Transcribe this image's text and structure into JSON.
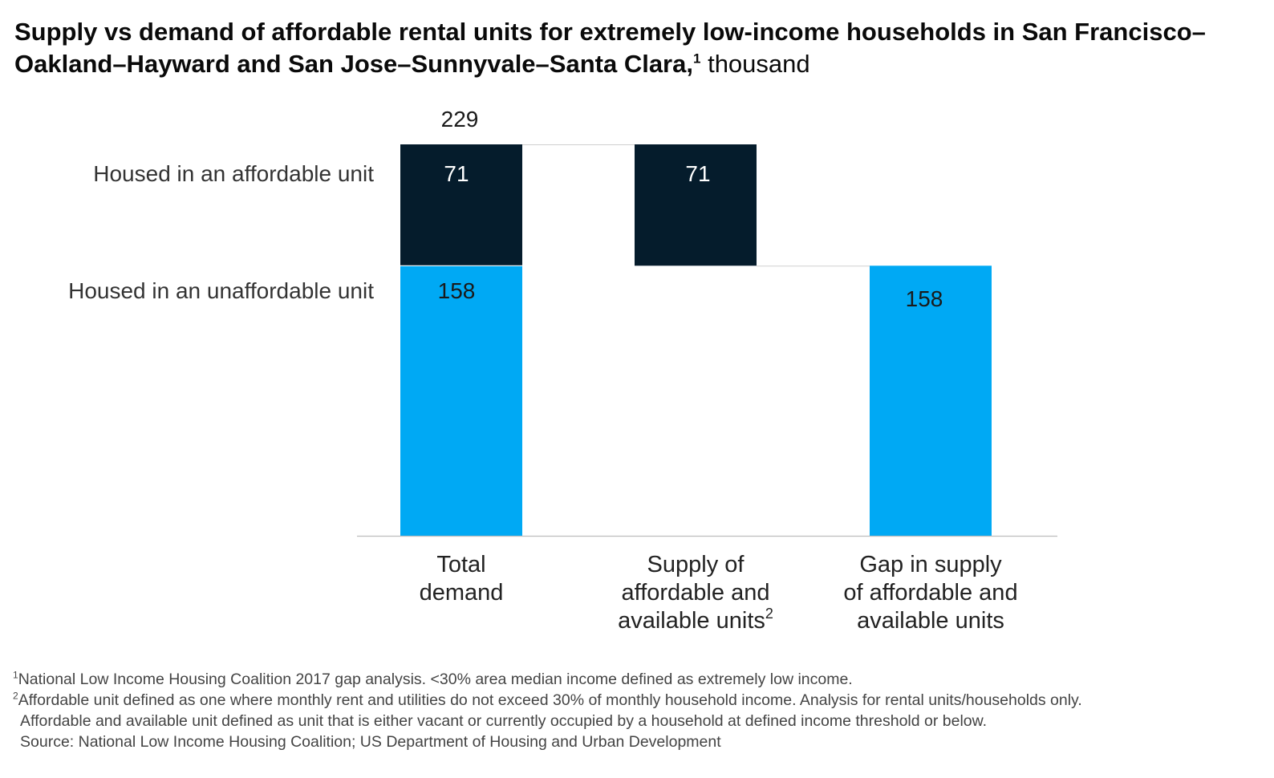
{
  "title": {
    "main": "Supply vs demand of affordable rental units for extremely low-income households in San Francisco–Oakland–Hayward and San Jose–Sunnyvale–Santa Clara,",
    "footnote_marker": "1",
    "unit": "thousand"
  },
  "chart_data": {
    "type": "bar",
    "subtype": "waterfall",
    "categories": [
      {
        "lines": [
          "Total",
          "demand"
        ],
        "sup": ""
      },
      {
        "lines": [
          "Supply of",
          "affordable and",
          "available units"
        ],
        "sup": "2"
      },
      {
        "lines": [
          "Gap in supply",
          "of affordable and",
          "available units"
        ],
        "sup": ""
      }
    ],
    "total_label": "229",
    "series": [
      {
        "name": "Housed in an unaffordable unit",
        "color": "#00a9f4",
        "values": [
          158,
          null,
          158
        ]
      },
      {
        "name": "Housed in an affordable unit",
        "color": "#051c2c",
        "values": [
          71,
          71,
          null
        ]
      }
    ],
    "data_labels": {
      "unaffordable": [
        "158",
        "",
        "158"
      ],
      "affordable": [
        "71",
        "71",
        ""
      ]
    },
    "ylim": [
      0,
      229
    ],
    "grid": false,
    "legend_position": "left"
  },
  "footnotes": [
    {
      "marker": "1",
      "text": "National Low Income Housing Coalition 2017 gap analysis. <30% area median income defined as extremely low income."
    },
    {
      "marker": "2",
      "text": "Affordable unit defined as one where monthly rent and utilities do not exceed 30% of monthly household income. Analysis for rental units/households only."
    },
    {
      "marker": "",
      "text": "Affordable and available unit defined as unit that is either vacant or currently occupied by a household at defined income threshold or below."
    },
    {
      "marker": "",
      "text": "Source: National Low Income Housing Coalition; US Department of Housing and Urban Development"
    }
  ]
}
